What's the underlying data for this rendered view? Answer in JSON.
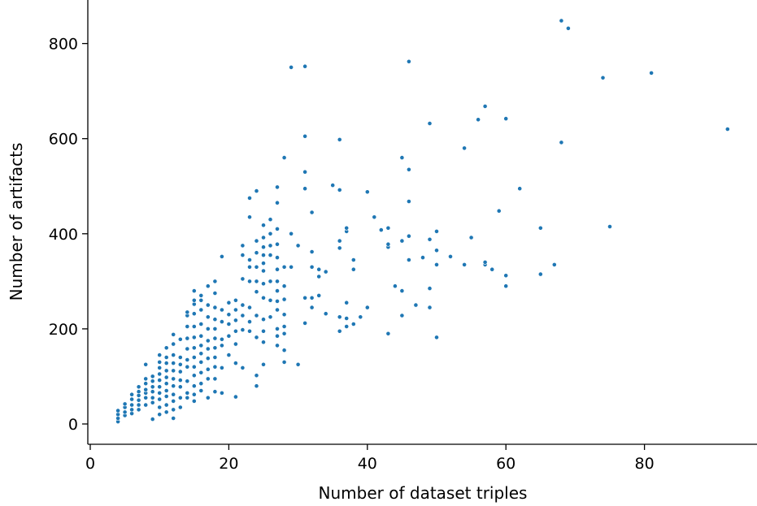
{
  "chart_data": {
    "type": "scatter",
    "title": "",
    "xlabel": "Number of dataset triples",
    "ylabel": "Number of artifacts",
    "xlim": [
      0,
      95
    ],
    "ylim": [
      -40,
      890
    ],
    "xticks": [
      0,
      20,
      40,
      60,
      80
    ],
    "yticks": [
      0,
      200,
      400,
      600,
      800
    ],
    "grid": false,
    "legend": false,
    "point_color": "#1f77b4",
    "points": [
      [
        4,
        5
      ],
      [
        4,
        12
      ],
      [
        4,
        20
      ],
      [
        4,
        28
      ],
      [
        5,
        18
      ],
      [
        5,
        25
      ],
      [
        5,
        35
      ],
      [
        5,
        42
      ],
      [
        6,
        22
      ],
      [
        6,
        30
      ],
      [
        6,
        40
      ],
      [
        6,
        52
      ],
      [
        6,
        62
      ],
      [
        7,
        30
      ],
      [
        7,
        40
      ],
      [
        7,
        50
      ],
      [
        7,
        60
      ],
      [
        7,
        68
      ],
      [
        7,
        78
      ],
      [
        8,
        40
      ],
      [
        8,
        55
      ],
      [
        8,
        65
      ],
      [
        8,
        72
      ],
      [
        8,
        85
      ],
      [
        8,
        95
      ],
      [
        8,
        125
      ],
      [
        9,
        10
      ],
      [
        9,
        45
      ],
      [
        9,
        55
      ],
      [
        9,
        68
      ],
      [
        9,
        78
      ],
      [
        9,
        90
      ],
      [
        9,
        100
      ],
      [
        10,
        20
      ],
      [
        10,
        35
      ],
      [
        10,
        52
      ],
      [
        10,
        65
      ],
      [
        10,
        78
      ],
      [
        10,
        92
      ],
      [
        10,
        105
      ],
      [
        10,
        118
      ],
      [
        10,
        130
      ],
      [
        10,
        145
      ],
      [
        11,
        25
      ],
      [
        11,
        40
      ],
      [
        11,
        58
      ],
      [
        11,
        70
      ],
      [
        11,
        85
      ],
      [
        11,
        98
      ],
      [
        11,
        112
      ],
      [
        11,
        128
      ],
      [
        11,
        140
      ],
      [
        11,
        160
      ],
      [
        12,
        12
      ],
      [
        12,
        30
      ],
      [
        12,
        48
      ],
      [
        12,
        62
      ],
      [
        12,
        80
      ],
      [
        12,
        95
      ],
      [
        12,
        112
      ],
      [
        12,
        128
      ],
      [
        12,
        145
      ],
      [
        12,
        168
      ],
      [
        12,
        188
      ],
      [
        13,
        35
      ],
      [
        13,
        55
      ],
      [
        13,
        78
      ],
      [
        13,
        92
      ],
      [
        13,
        110
      ],
      [
        13,
        125
      ],
      [
        13,
        140
      ],
      [
        13,
        178
      ],
      [
        14,
        55
      ],
      [
        14,
        65
      ],
      [
        14,
        90
      ],
      [
        14,
        120
      ],
      [
        14,
        135
      ],
      [
        14,
        158
      ],
      [
        14,
        180
      ],
      [
        14,
        205
      ],
      [
        14,
        228
      ],
      [
        14,
        235
      ],
      [
        15,
        48
      ],
      [
        15,
        62
      ],
      [
        15,
        80
      ],
      [
        15,
        102
      ],
      [
        15,
        120
      ],
      [
        15,
        140
      ],
      [
        15,
        160
      ],
      [
        15,
        182
      ],
      [
        15,
        205
      ],
      [
        15,
        232
      ],
      [
        15,
        252
      ],
      [
        15,
        260
      ],
      [
        15,
        280
      ],
      [
        16,
        70
      ],
      [
        16,
        85
      ],
      [
        16,
        108
      ],
      [
        16,
        130
      ],
      [
        16,
        148
      ],
      [
        16,
        165
      ],
      [
        16,
        185
      ],
      [
        16,
        210
      ],
      [
        16,
        240
      ],
      [
        16,
        260
      ],
      [
        16,
        270
      ],
      [
        17,
        55
      ],
      [
        17,
        95
      ],
      [
        17,
        115
      ],
      [
        17,
        138
      ],
      [
        17,
        158
      ],
      [
        17,
        175
      ],
      [
        17,
        200
      ],
      [
        17,
        225
      ],
      [
        17,
        250
      ],
      [
        17,
        290
      ],
      [
        18,
        68
      ],
      [
        18,
        95
      ],
      [
        18,
        120
      ],
      [
        18,
        140
      ],
      [
        18,
        160
      ],
      [
        18,
        180
      ],
      [
        18,
        200
      ],
      [
        18,
        220
      ],
      [
        18,
        245
      ],
      [
        18,
        275
      ],
      [
        18,
        300
      ],
      [
        19,
        65
      ],
      [
        19,
        118
      ],
      [
        19,
        165
      ],
      [
        19,
        178
      ],
      [
        19,
        215
      ],
      [
        19,
        240
      ],
      [
        19,
        352
      ],
      [
        20,
        145
      ],
      [
        20,
        185
      ],
      [
        20,
        210
      ],
      [
        20,
        230
      ],
      [
        20,
        255
      ],
      [
        21,
        57
      ],
      [
        21,
        128
      ],
      [
        21,
        168
      ],
      [
        21,
        195
      ],
      [
        21,
        218
      ],
      [
        21,
        240
      ],
      [
        21,
        260
      ],
      [
        22,
        118
      ],
      [
        22,
        198
      ],
      [
        22,
        228
      ],
      [
        22,
        250
      ],
      [
        22,
        305
      ],
      [
        22,
        355
      ],
      [
        22,
        375
      ],
      [
        23,
        195
      ],
      [
        23,
        215
      ],
      [
        23,
        245
      ],
      [
        23,
        300
      ],
      [
        23,
        330
      ],
      [
        23,
        345
      ],
      [
        23,
        435
      ],
      [
        23,
        475
      ],
      [
        24,
        80
      ],
      [
        24,
        102
      ],
      [
        24,
        182
      ],
      [
        24,
        228
      ],
      [
        24,
        278
      ],
      [
        24,
        300
      ],
      [
        24,
        330
      ],
      [
        24,
        360
      ],
      [
        24,
        385
      ],
      [
        24,
        490
      ],
      [
        25,
        125
      ],
      [
        25,
        172
      ],
      [
        25,
        195
      ],
      [
        25,
        220
      ],
      [
        25,
        265
      ],
      [
        25,
        295
      ],
      [
        25,
        322
      ],
      [
        25,
        338
      ],
      [
        25,
        355
      ],
      [
        25,
        372
      ],
      [
        25,
        392
      ],
      [
        25,
        418
      ],
      [
        26,
        225
      ],
      [
        26,
        260
      ],
      [
        26,
        300
      ],
      [
        26,
        355
      ],
      [
        26,
        375
      ],
      [
        26,
        400
      ],
      [
        26,
        430
      ],
      [
        27,
        165
      ],
      [
        27,
        185
      ],
      [
        27,
        200
      ],
      [
        27,
        240
      ],
      [
        27,
        258
      ],
      [
        27,
        280
      ],
      [
        27,
        300
      ],
      [
        27,
        325
      ],
      [
        27,
        350
      ],
      [
        27,
        378
      ],
      [
        27,
        410
      ],
      [
        27,
        465
      ],
      [
        27,
        498
      ],
      [
        28,
        130
      ],
      [
        28,
        155
      ],
      [
        28,
        190
      ],
      [
        28,
        205
      ],
      [
        28,
        230
      ],
      [
        28,
        262
      ],
      [
        28,
        290
      ],
      [
        28,
        330
      ],
      [
        28,
        560
      ],
      [
        29,
        400
      ],
      [
        29,
        330
      ],
      [
        29,
        750
      ],
      [
        30,
        125
      ],
      [
        30,
        375
      ],
      [
        31,
        212
      ],
      [
        31,
        265
      ],
      [
        31,
        495
      ],
      [
        31,
        530
      ],
      [
        31,
        605
      ],
      [
        31,
        752
      ],
      [
        32,
        245
      ],
      [
        32,
        265
      ],
      [
        32,
        330
      ],
      [
        32,
        362
      ],
      [
        32,
        445
      ],
      [
        33,
        270
      ],
      [
        33,
        310
      ],
      [
        33,
        325
      ],
      [
        34,
        232
      ],
      [
        34,
        320
      ],
      [
        35,
        502
      ],
      [
        36,
        195
      ],
      [
        36,
        225
      ],
      [
        36,
        370
      ],
      [
        36,
        385
      ],
      [
        36,
        492
      ],
      [
        36,
        598
      ],
      [
        37,
        205
      ],
      [
        37,
        222
      ],
      [
        37,
        255
      ],
      [
        37,
        405
      ],
      [
        37,
        412
      ],
      [
        38,
        210
      ],
      [
        38,
        325
      ],
      [
        38,
        345
      ],
      [
        39,
        225
      ],
      [
        40,
        245
      ],
      [
        40,
        488
      ],
      [
        41,
        435
      ],
      [
        42,
        408
      ],
      [
        43,
        190
      ],
      [
        43,
        372
      ],
      [
        43,
        378
      ],
      [
        43,
        412
      ],
      [
        44,
        290
      ],
      [
        45,
        228
      ],
      [
        45,
        280
      ],
      [
        45,
        385
      ],
      [
        45,
        560
      ],
      [
        46,
        345
      ],
      [
        46,
        395
      ],
      [
        46,
        468
      ],
      [
        46,
        535
      ],
      [
        46,
        762
      ],
      [
        47,
        250
      ],
      [
        48,
        350
      ],
      [
        49,
        245
      ],
      [
        49,
        285
      ],
      [
        49,
        388
      ],
      [
        49,
        632
      ],
      [
        50,
        182
      ],
      [
        50,
        335
      ],
      [
        50,
        365
      ],
      [
        50,
        405
      ],
      [
        52,
        352
      ],
      [
        54,
        335
      ],
      [
        54,
        580
      ],
      [
        55,
        392
      ],
      [
        56,
        640
      ],
      [
        57,
        335
      ],
      [
        57,
        340
      ],
      [
        57,
        668
      ],
      [
        58,
        325
      ],
      [
        59,
        448
      ],
      [
        60,
        290
      ],
      [
        60,
        312
      ],
      [
        60,
        642
      ],
      [
        62,
        495
      ],
      [
        65,
        315
      ],
      [
        65,
        412
      ],
      [
        67,
        335
      ],
      [
        68,
        592
      ],
      [
        68,
        848
      ],
      [
        69,
        832
      ],
      [
        74,
        728
      ],
      [
        75,
        415
      ],
      [
        81,
        738
      ],
      [
        92,
        620
      ]
    ]
  }
}
